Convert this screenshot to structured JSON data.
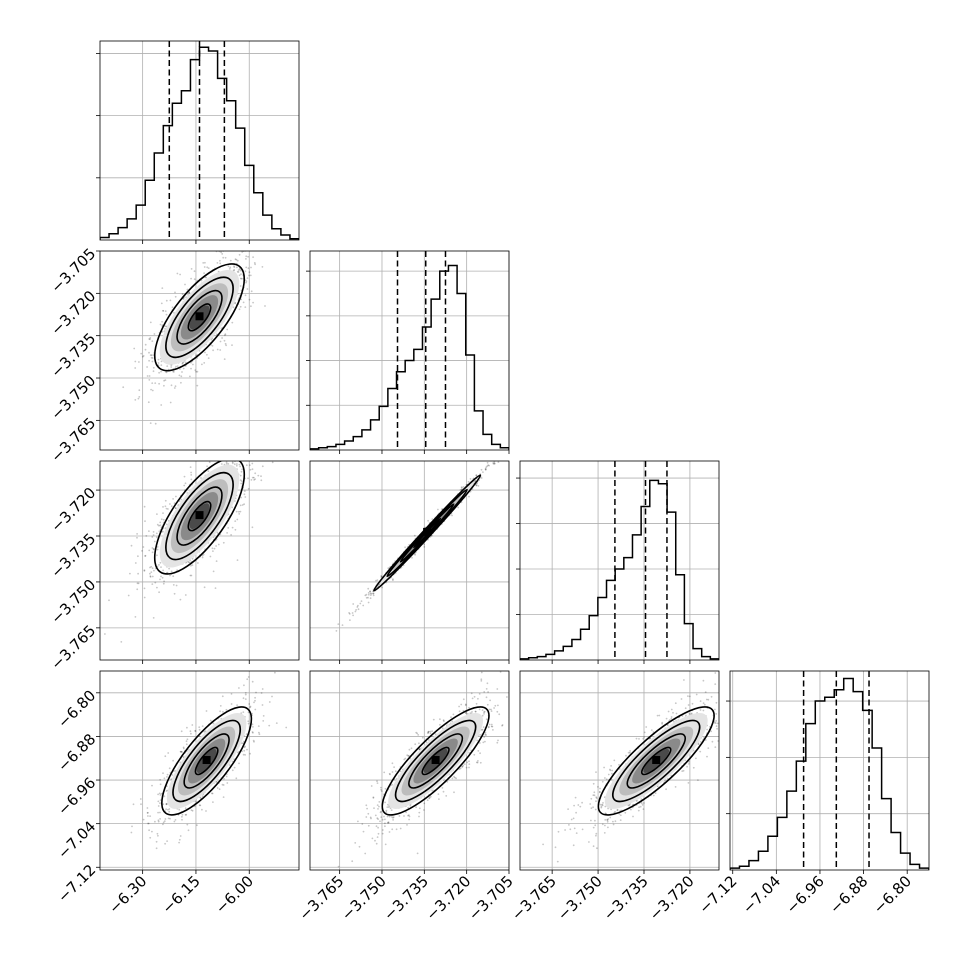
{
  "chart_data": {
    "type": "corner",
    "grid": true,
    "parameters": [
      {
        "index": 0,
        "range": [
          -6.42,
          -5.86
        ],
        "ticks": [
          "−6.30",
          "−6.15",
          "−6.00"
        ],
        "tick_values": [
          -6.3,
          -6.15,
          -6.0
        ],
        "quantiles": [
          -6.225,
          -6.14,
          -6.07
        ]
      },
      {
        "index": 1,
        "range": [
          -3.7755,
          -3.705
        ],
        "ticks": [
          "−3.765",
          "−3.750",
          "−3.735",
          "−3.720",
          "−3.705"
        ],
        "tick_values": [
          -3.765,
          -3.75,
          -3.735,
          -3.72,
          -3.705
        ],
        "quantiles": [
          -3.7445,
          -3.7345,
          -3.7275
        ]
      },
      {
        "index": 2,
        "range": [
          -3.7755,
          -3.7105
        ],
        "ticks": [
          "−3.765",
          "−3.750",
          "−3.735",
          "−3.720"
        ],
        "tick_values": [
          -3.765,
          -3.75,
          -3.735,
          -3.72
        ],
        "quantiles": [
          -3.7445,
          -3.7345,
          -3.7275
        ]
      },
      {
        "index": 3,
        "range": [
          -7.125,
          -6.76
        ],
        "ticks": [
          "−7.12",
          "−7.04",
          "−6.96",
          "−6.88",
          "−6.80"
        ],
        "tick_values": [
          -7.12,
          -7.04,
          -6.96,
          -6.88,
          -6.8
        ],
        "quantiles": [
          -6.99,
          -6.93,
          -6.87
        ]
      }
    ],
    "histograms": [
      {
        "param": 0,
        "counts": [
          2,
          5,
          10,
          17,
          28,
          48,
          70,
          92,
          110,
          120,
          145,
          155,
          152,
          130,
          112,
          90,
          60,
          38,
          20,
          9,
          4,
          1
        ],
        "ymax": 160,
        "yticks": [
          50,
          100,
          150
        ]
      },
      {
        "param": 1,
        "counts": [
          1,
          2,
          3,
          5,
          8,
          12,
          18,
          27,
          39,
          55,
          70,
          80,
          90,
          110,
          135,
          160,
          165,
          140,
          85,
          35,
          14,
          5,
          2
        ],
        "ymax": 178,
        "yticks": [
          40,
          80,
          120,
          160
        ]
      },
      {
        "param": 2,
        "counts": [
          1,
          2,
          3,
          5,
          8,
          12,
          18,
          27,
          39,
          55,
          70,
          80,
          90,
          110,
          135,
          158,
          155,
          130,
          75,
          32,
          10,
          3,
          1
        ],
        "ymax": 175,
        "yticks": [
          40,
          80,
          120,
          160
        ]
      },
      {
        "param": 3,
        "counts": [
          1,
          2,
          5,
          10,
          18,
          28,
          42,
          58,
          78,
          90,
          92,
          96,
          102,
          95,
          85,
          65,
          38,
          20,
          9,
          3,
          1
        ],
        "ymax": 106,
        "yticks": [
          30,
          60,
          90
        ]
      }
    ],
    "pairs": [
      {
        "x_param": 0,
        "y_param": 1,
        "mean": [
          -6.14,
          -3.7285
        ],
        "sd": [
          0.07,
          0.0105
        ],
        "rho": 0.72
      },
      {
        "x_param": 0,
        "y_param": 2,
        "mean": [
          -6.14,
          -3.7285
        ],
        "sd": [
          0.07,
          0.0105
        ],
        "rho": 0.72
      },
      {
        "x_param": 1,
        "y_param": 2,
        "mean": [
          -3.734,
          -3.734
        ],
        "sd": [
          0.0105,
          0.0105
        ],
        "rho": 0.995
      },
      {
        "x_param": 0,
        "y_param": 3,
        "mean": [
          -6.12,
          -6.925
        ],
        "sd": [
          0.07,
          0.055
        ],
        "rho": 0.78
      },
      {
        "x_param": 1,
        "y_param": 3,
        "mean": [
          -3.731,
          -6.925
        ],
        "sd": [
          0.0105,
          0.055
        ],
        "rho": 0.84
      },
      {
        "x_param": 2,
        "y_param": 3,
        "mean": [
          -3.731,
          -6.925
        ],
        "sd": [
          0.0105,
          0.055
        ],
        "rho": 0.84
      }
    ],
    "contour_levels_sigma": [
      0.5,
      1.0,
      1.5,
      2.0
    ]
  }
}
